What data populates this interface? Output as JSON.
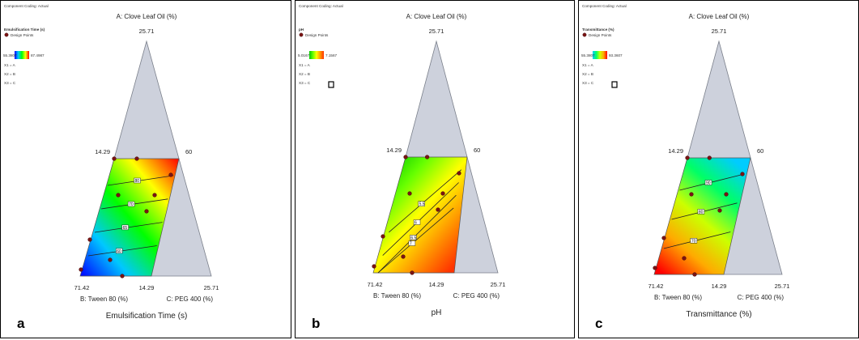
{
  "chart_data": [
    {
      "type": "contour",
      "panel_letter": "a",
      "coding_label": "Component Coding: Actual",
      "response_title": "Emulsification Time (s)",
      "design_points_label": "Design Points",
      "scale_low": "55.3807",
      "scale_high": "87.4987",
      "comp_x1": "X1 = A",
      "comp_x2": "X2 = B",
      "comp_x3": "X3 = C",
      "axis_a_label": "A: Clove Leaf Oil (%)",
      "axis_b_label": "B: Tween 80 (%)",
      "axis_c_label": "C: PEG 400 (%)",
      "tick_apex": "25.71",
      "tick_left_mid": "14.29",
      "tick_right_mid": "60",
      "tick_bottom_left": "71.42",
      "tick_bottom_mid": "14.29",
      "tick_bottom_right": "25.71",
      "xlabel": "Emulsification Time (s)",
      "gradient_direction": "bottom-left to top-right",
      "gradient_colors": [
        "#0000ff",
        "#00c8ff",
        "#00ff00",
        "#ffff00",
        "#ff0000"
      ],
      "contour_labels": [
        "80",
        "70",
        "65",
        "60"
      ],
      "contour_slope": 0.1
    },
    {
      "type": "contour",
      "panel_letter": "b",
      "coding_label": "Component Coding: Actual",
      "response_title": "pH",
      "design_points_label": "Design Points",
      "scale_low": "5.0167",
      "scale_high": "7.1567",
      "comp_x1": "X1 = A",
      "comp_x2": "X2 = B",
      "comp_x3": "X3 = C",
      "axis_a_label": "A: Clove Leaf Oil (%)",
      "axis_b_label": "B: Tween 80 (%)",
      "axis_c_label": "C: PEG 400 (%)",
      "tick_apex": "25.71",
      "tick_left_mid": "14.29",
      "tick_right_mid": "60",
      "tick_bottom_left": "71.42",
      "tick_bottom_mid": "14.29",
      "tick_bottom_right": "25.71",
      "xlabel": "pH",
      "gradient_direction": "top-left to bottom-right",
      "gradient_colors": [
        "#00c800",
        "#66ff00",
        "#ffff00",
        "#ff9900",
        "#ff3300"
      ],
      "contour_labels": [
        "5.5",
        "6",
        "6.5",
        "7"
      ],
      "contour_slope": -0.85
    },
    {
      "type": "contour",
      "panel_letter": "c",
      "coding_label": "Component Coding: Actual",
      "response_title": "Transmittance (%)",
      "design_points_label": "Design Points",
      "scale_low": "55.3807",
      "scale_high": "93.3607",
      "comp_x1": "X1 = A",
      "comp_x2": "X2 = B",
      "comp_x3": "X3 = C",
      "axis_a_label": "A: Clove Leaf Oil (%)",
      "axis_b_label": "B: Tween 80 (%)",
      "axis_c_label": "C: PEG 400 (%)",
      "tick_apex": "25.71",
      "tick_left_mid": "14.29",
      "tick_right_mid": "60",
      "tick_bottom_left": "71.42",
      "tick_bottom_mid": "14.29",
      "tick_bottom_right": "25.71",
      "xlabel": "Transmittance (%)",
      "gradient_direction": "top-right to bottom-left",
      "gradient_colors": [
        "#00ccff",
        "#00ff66",
        "#ccff00",
        "#ffaa00",
        "#ff0000"
      ],
      "contour_labels": [
        "90",
        "80",
        "70"
      ],
      "contour_slope": 0.2
    }
  ]
}
